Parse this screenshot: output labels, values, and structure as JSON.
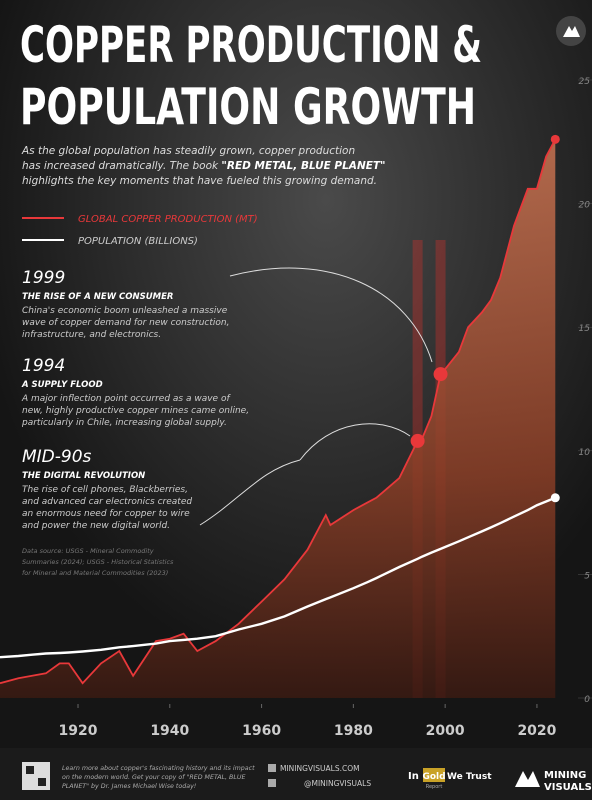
{
  "chart_data": {
    "type": "line",
    "title": [
      "COPPER PRODUCTION &",
      "POPULATION GROWTH"
    ],
    "subtitle": {
      "line1": "As the global population has steadily grown, copper production",
      "line2": "has increased dramatically. The book ",
      "bold": "\"RED METAL, BLUE PLANET\"",
      "line3": "highlights the key moments that have fueled this growing demand."
    },
    "x": [
      1903,
      1907,
      1910,
      1913,
      1916,
      1918,
      1921,
      1925,
      1929,
      1932,
      1937,
      1940,
      1943,
      1946,
      1950,
      1955,
      1960,
      1965,
      1970,
      1974,
      1975,
      1980,
      1983,
      1985,
      1990,
      1994,
      1995,
      1997,
      1999,
      2000,
      2003,
      2005,
      2008,
      2010,
      2012,
      2015,
      2018,
      2020,
      2022,
      2024
    ],
    "series": [
      {
        "name": "GLOBAL COPPER PRODUCTION (MT)",
        "color": "#e8383a",
        "values": [
          0.6,
          0.8,
          0.9,
          1.0,
          1.4,
          1.4,
          0.6,
          1.4,
          1.9,
          0.9,
          2.3,
          2.4,
          2.6,
          1.9,
          2.3,
          3.0,
          3.9,
          4.8,
          6.0,
          7.4,
          7.0,
          7.6,
          7.9,
          8.1,
          8.9,
          10.4,
          10.5,
          11.4,
          13.1,
          13.3,
          14.0,
          15.0,
          15.6,
          16.1,
          17.0,
          19.1,
          20.6,
          20.6,
          21.9,
          22.6
        ]
      },
      {
        "name": "POPULATION (BILLIONS)",
        "color": "#ffffff",
        "values": [
          1.65,
          1.7,
          1.75,
          1.8,
          1.82,
          1.84,
          1.88,
          1.95,
          2.05,
          2.1,
          2.2,
          2.3,
          2.35,
          2.4,
          2.5,
          2.77,
          3.0,
          3.3,
          3.7,
          4.0,
          4.07,
          4.44,
          4.68,
          4.85,
          5.3,
          5.63,
          5.72,
          5.88,
          6.03,
          6.11,
          6.34,
          6.5,
          6.74,
          6.9,
          7.07,
          7.34,
          7.6,
          7.8,
          7.95,
          8.1
        ]
      }
    ],
    "highlight_x": [
      1994,
      1999
    ],
    "xlim": [
      1903,
      2032
    ],
    "xticks": [
      1920,
      1940,
      1960,
      1980,
      2000,
      2020
    ],
    "ylim": [
      0,
      25
    ],
    "yticks": [
      0,
      5,
      10,
      15,
      20,
      25
    ],
    "annotations": [
      {
        "label": "1999",
        "heading": "THE RISE OF A NEW CONSUMER",
        "body": [
          "China's economic boom unleashed a massive",
          "wave of copper demand for new construction,",
          "infrastructure, and electronics."
        ]
      },
      {
        "label": "1994",
        "heading": "A SUPPLY FLOOD",
        "body": [
          "A major inflection point occurred as a wave of",
          "new, highly productive copper mines came online,",
          "particularly in Chile, increasing global supply."
        ]
      },
      {
        "label": "MID-90s",
        "heading": "THE DIGITAL REVOLUTION",
        "body": [
          "The rise of cell phones, Blackberries,",
          "and advanced car electronics created",
          "an enormous need for copper to wire",
          "and power the new digital world."
        ]
      }
    ],
    "source": [
      "Data source: USGS - Mineral Commodity",
      "Summaries (2024); USGS - Historical Statistics",
      "for Mineral and Material Commodities (2023)"
    ]
  },
  "footer": {
    "promo": [
      "Learn more about copper's fascinating history and its impact",
      "on the modern world. Get your copy of \"RED METAL, BLUE",
      "PLANET\" by Dr. James Michael Wise today!"
    ],
    "website": "MININGVISUALS.COM",
    "handle": "@MININGVISUALS",
    "partner": [
      "In",
      "Gold",
      "We Trust",
      "Report"
    ],
    "brand": [
      "MINING",
      "VISUALS"
    ]
  }
}
